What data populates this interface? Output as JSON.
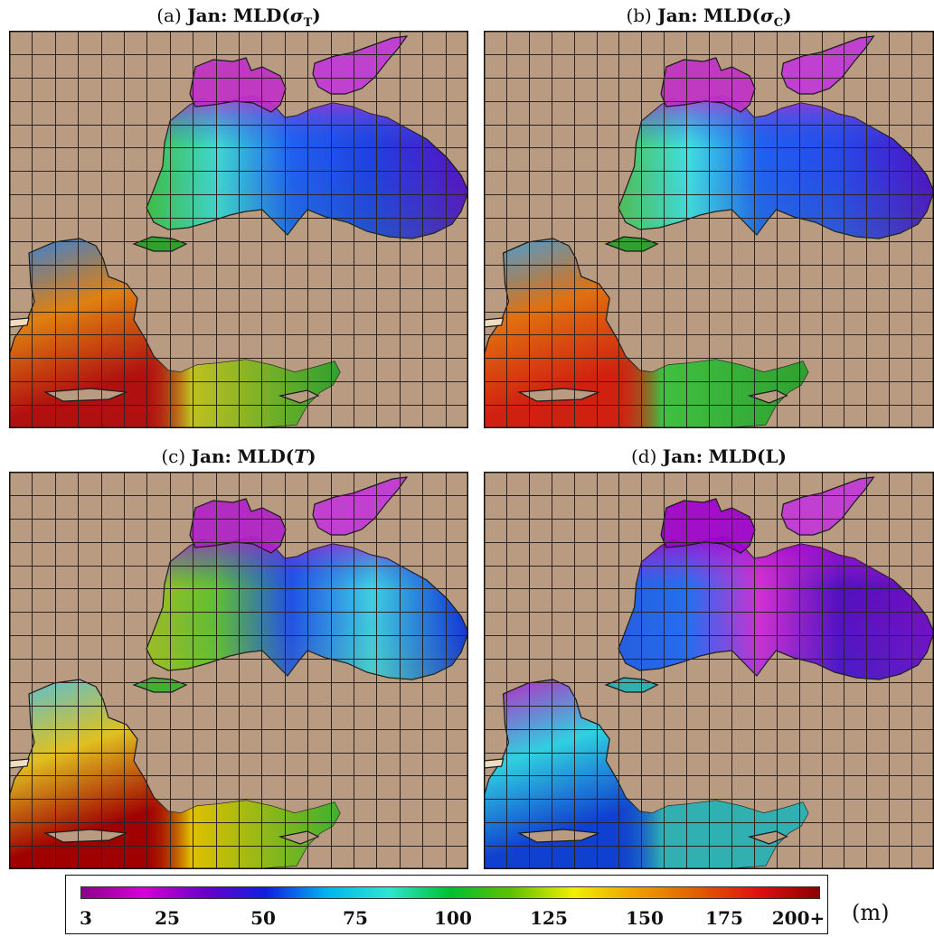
{
  "panels": [
    {
      "letter": "(a)",
      "month": "Jan:",
      "func": "MLD(",
      "sym": "σ",
      "sub": "T",
      "close": ")",
      "symItalic": true
    },
    {
      "letter": "(b)",
      "month": "Jan:",
      "func": "MLD(",
      "sym": "σ",
      "sub": "C",
      "close": ")",
      "symItalic": true
    },
    {
      "letter": "(c)",
      "month": "Jan:",
      "func": "MLD(",
      "sym": "T",
      "sub": "",
      "close": ")",
      "symItalic": true
    },
    {
      "letter": "(d)",
      "month": "Jan:",
      "func": "MLD(",
      "sym": "L",
      "sub": "",
      "close": ")",
      "symItalic": false
    }
  ],
  "colorbar": {
    "ticks": [
      "3",
      "25",
      "50",
      "75",
      "100",
      "125",
      "150",
      "175",
      "200+"
    ],
    "unit": "(m)",
    "colors": [
      "#8b008b",
      "#d600d6",
      "#6a00c8",
      "#1020e0",
      "#00b4f0",
      "#2ee6d0",
      "#00c030",
      "#60c000",
      "#f0f000",
      "#f0a000",
      "#e06000",
      "#e01010",
      "#8b0000"
    ]
  },
  "map_style": {
    "land_color": "#b99b82",
    "grid_color": "#2a2320",
    "grid_cols": 20,
    "grid_rows": 17,
    "panel_fields": [
      {
        "bsNW": "#c030c8",
        "bsNWmid": "#2060f0",
        "bsW": "#40d8d0",
        "bsSW": "#40c040",
        "bsE": "#2040e0",
        "bsSE": "#5a10c0",
        "azov": "#c040d0",
        "aegN": "#3080e0",
        "aegMid": "#e08010",
        "aegS": "#b01010",
        "levant": "#c0c020",
        "levantE": "#30a030"
      },
      {
        "bsNW": "#c030c8",
        "bsNWmid": "#2060f0",
        "bsW": "#40e0e0",
        "bsSW": "#50c050",
        "bsE": "#2848e8",
        "bsSE": "#5010c0",
        "azov": "#c040d0",
        "aegN": "#40a0e0",
        "aegMid": "#e07010",
        "aegS": "#d02010",
        "levant": "#40c040",
        "levantE": "#30a030"
      },
      {
        "bsNW": "#b020c8",
        "bsNWmid": "#2050e8",
        "bsW": "#60c030",
        "bsSW": "#a0c020",
        "bsE": "#40d0e0",
        "bsSE": "#1030d8",
        "azov": "#c040d0",
        "aegN": "#50c0e0",
        "aegMid": "#e0c020",
        "aegS": "#a00000",
        "levant": "#e0c000",
        "levantE": "#40b030"
      },
      {
        "bsNW": "#a000d0",
        "bsNWmid": "#d030d0",
        "bsW": "#2070f0",
        "bsSW": "#2060e0",
        "bsE": "#5010c0",
        "bsSE": "#7010c0",
        "azov": "#c040d0",
        "aegN": "#c020c0",
        "aegMid": "#30d0e0",
        "aegS": "#1040d0",
        "levant": "#30b0b0",
        "levantE": "#30b0b0"
      }
    ]
  }
}
